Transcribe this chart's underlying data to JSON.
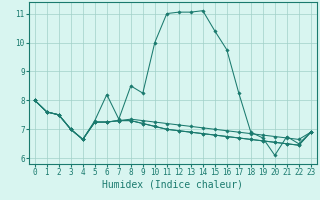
{
  "xlabel": "Humidex (Indice chaleur)",
  "x_values": [
    0,
    1,
    2,
    3,
    4,
    5,
    6,
    7,
    8,
    9,
    10,
    11,
    12,
    13,
    14,
    15,
    16,
    17,
    18,
    19,
    20,
    21,
    22,
    23
  ],
  "series": [
    [
      8.0,
      7.6,
      7.5,
      7.0,
      6.65,
      7.3,
      8.2,
      7.35,
      8.5,
      8.25,
      10.0,
      11.0,
      11.05,
      11.05,
      11.1,
      10.4,
      9.75,
      8.25,
      6.9,
      6.7,
      6.1,
      6.75,
      6.5,
      6.9
    ],
    [
      8.0,
      7.6,
      7.5,
      7.0,
      6.65,
      7.25,
      7.25,
      7.3,
      7.35,
      7.3,
      7.25,
      7.2,
      7.15,
      7.1,
      7.05,
      7.0,
      6.95,
      6.9,
      6.85,
      6.8,
      6.75,
      6.7,
      6.65,
      6.9
    ],
    [
      8.0,
      7.6,
      7.5,
      7.0,
      6.65,
      7.25,
      7.25,
      7.3,
      7.3,
      7.2,
      7.1,
      7.0,
      6.95,
      6.9,
      6.85,
      6.8,
      6.75,
      6.7,
      6.65,
      6.6,
      6.55,
      6.5,
      6.45,
      6.9
    ],
    [
      8.0,
      7.6,
      7.5,
      7.0,
      6.65,
      7.25,
      7.25,
      7.3,
      7.3,
      7.2,
      7.1,
      7.0,
      6.95,
      6.9,
      6.85,
      6.8,
      6.75,
      6.7,
      6.65,
      6.6,
      6.55,
      6.5,
      6.45,
      6.9
    ]
  ],
  "line_color": "#1a7a6e",
  "marker": "D",
  "marker_size": 1.8,
  "bg_color": "#d8f5f0",
  "grid_color": "#a0d0c8",
  "ylim": [
    5.8,
    11.4
  ],
  "xlim": [
    -0.5,
    23.5
  ],
  "yticks": [
    6,
    7,
    8,
    9,
    10,
    11
  ],
  "xticks": [
    0,
    1,
    2,
    3,
    4,
    5,
    6,
    7,
    8,
    9,
    10,
    11,
    12,
    13,
    14,
    15,
    16,
    17,
    18,
    19,
    20,
    21,
    22,
    23
  ],
  "tick_fontsize": 5.5,
  "label_fontsize": 7.0,
  "linewidth": 0.75
}
